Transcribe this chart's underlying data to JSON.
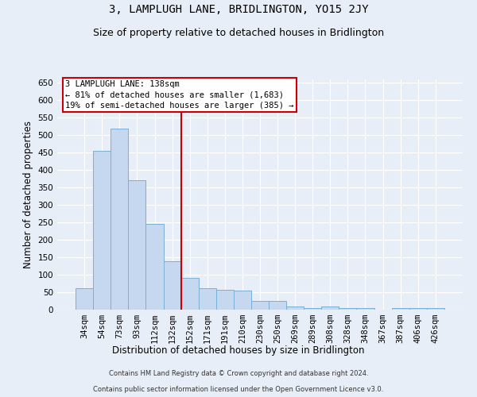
{
  "title": "3, LAMPLUGH LANE, BRIDLINGTON, YO15 2JY",
  "subtitle": "Size of property relative to detached houses in Bridlington",
  "xlabel": "Distribution of detached houses by size in Bridlington",
  "ylabel": "Number of detached properties",
  "footer_line1": "Contains HM Land Registry data © Crown copyright and database right 2024.",
  "footer_line2": "Contains public sector information licensed under the Open Government Licence v3.0.",
  "categories": [
    "34sqm",
    "54sqm",
    "73sqm",
    "93sqm",
    "112sqm",
    "132sqm",
    "152sqm",
    "171sqm",
    "191sqm",
    "210sqm",
    "230sqm",
    "250sqm",
    "269sqm",
    "289sqm",
    "308sqm",
    "328sqm",
    "348sqm",
    "367sqm",
    "387sqm",
    "406sqm",
    "426sqm"
  ],
  "values": [
    62,
    455,
    520,
    370,
    245,
    138,
    92,
    62,
    58,
    55,
    26,
    26,
    8,
    5,
    10,
    5,
    5,
    0,
    5,
    5,
    5
  ],
  "bar_color": "#c5d8ef",
  "bar_edge_color": "#7aafd4",
  "highlight_index": 5,
  "highlight_color": "#cc0000",
  "annotation_text": "3 LAMPLUGH LANE: 138sqm\n← 81% of detached houses are smaller (1,683)\n19% of semi-detached houses are larger (385) →",
  "annotation_box_color": "#cc0000",
  "ylim": [
    0,
    660
  ],
  "yticks": [
    0,
    50,
    100,
    150,
    200,
    250,
    300,
    350,
    400,
    450,
    500,
    550,
    600,
    650
  ],
  "bg_color": "#e8eef7",
  "grid_color": "#ffffff",
  "title_fontsize": 10,
  "subtitle_fontsize": 9,
  "axis_label_fontsize": 8.5,
  "tick_fontsize": 7.5,
  "footer_fontsize": 6,
  "annotation_fontsize": 7.5
}
